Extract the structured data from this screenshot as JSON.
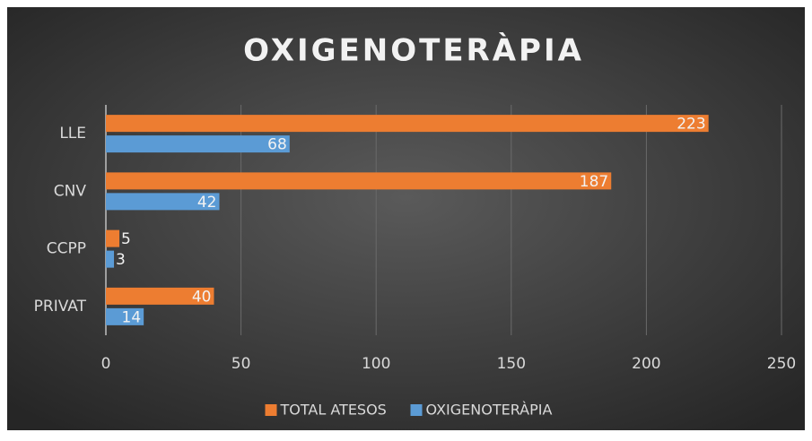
{
  "chart_data": {
    "type": "bar",
    "orientation": "horizontal",
    "title": "OXIGENOTERÀPIA",
    "categories": [
      "LLE",
      "CNV",
      "CCPP",
      "PRIVAT"
    ],
    "series": [
      {
        "name": "TOTAL ATESOS",
        "color": "#ed7d31",
        "values": [
          223,
          187,
          5,
          40
        ]
      },
      {
        "name": "OXIGENOTERÀPIA",
        "color": "#5b9bd5",
        "values": [
          68,
          42,
          3,
          14
        ]
      }
    ],
    "xlim": [
      0,
      250
    ],
    "xticks": [
      0,
      50,
      100,
      150,
      200,
      250
    ],
    "grid": true,
    "legend": "bottom"
  }
}
